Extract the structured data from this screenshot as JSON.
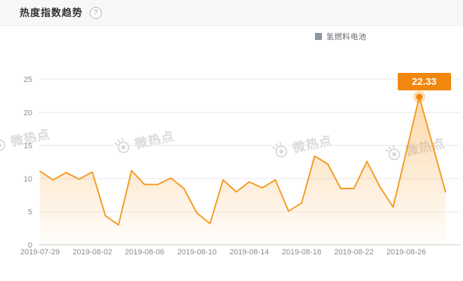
{
  "header": {
    "title": "热度指数趋势",
    "help_glyph": "?"
  },
  "legend": {
    "label": "氢燃料电池",
    "marker_color": "#8d95a0"
  },
  "watermark": {
    "text": "微热点"
  },
  "callout": {
    "value": "22.33",
    "bg": "#F1870E",
    "text_color": "#ffffff"
  },
  "colors": {
    "line": "#F59A23",
    "area_top": "rgba(245,154,35,0.38)",
    "area_bottom": "rgba(245,154,35,0.02)",
    "grid": "#e7e7e7",
    "axis_line": "#cccccc",
    "tick_label": "#8b8b8b",
    "peak_dot": "#F1870E",
    "peak_halo": "rgba(243,152,32,0.35)"
  },
  "chart_data": {
    "type": "area",
    "title": "热度指数趋势",
    "series": [
      {
        "name": "氢燃料电池",
        "values": [
          11.1,
          9.8,
          10.9,
          9.9,
          11.0,
          4.4,
          3.0,
          11.2,
          9.1,
          9.1,
          10.1,
          8.5,
          4.8,
          3.2,
          9.8,
          8.0,
          9.5,
          8.6,
          9.8,
          5.1,
          6.3,
          13.4,
          12.2,
          8.5,
          8.5,
          12.6,
          8.7,
          5.7,
          14.0,
          22.33,
          15.2,
          8.0
        ]
      }
    ],
    "x": [
      "2019-07-29",
      "2019-07-30",
      "2019-07-31",
      "2019-08-01",
      "2019-08-02",
      "2019-08-03",
      "2019-08-04",
      "2019-08-05",
      "2019-08-06",
      "2019-08-07",
      "2019-08-08",
      "2019-08-09",
      "2019-08-10",
      "2019-08-11",
      "2019-08-12",
      "2019-08-13",
      "2019-08-14",
      "2019-08-15",
      "2019-08-16",
      "2019-08-17",
      "2019-08-18",
      "2019-08-19",
      "2019-08-20",
      "2019-08-21",
      "2019-08-22",
      "2019-08-23",
      "2019-08-24",
      "2019-08-25",
      "2019-08-26",
      "2019-08-27",
      "2019-08-28",
      "2019-08-29"
    ],
    "xticks_shown": [
      "2019-07-29",
      "2019-08-02",
      "2019-08-06",
      "2019-08-10",
      "2019-08-14",
      "2019-08-18",
      "2019-08-22",
      "2019-08-26"
    ],
    "xtick_every": 4,
    "yticks": [
      0,
      5,
      10,
      15,
      20,
      25
    ],
    "ylim": [
      0,
      25
    ],
    "xlabel": "",
    "ylabel": "",
    "grid": "horizontal only",
    "legend_position": "top-right",
    "peak_label": {
      "date": "2019-08-27",
      "value": 22.33,
      "text": "22.33"
    }
  }
}
